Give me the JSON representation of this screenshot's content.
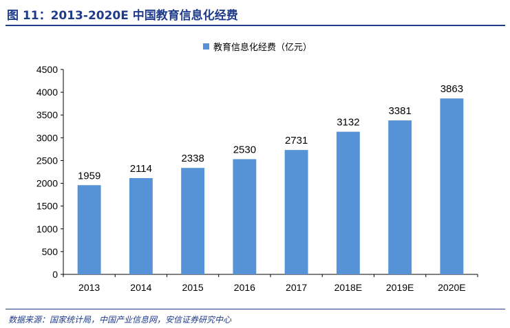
{
  "figure": {
    "title": "图 11：2013-2020E 中国教育信息化经费",
    "source": "数据来源：国家统计局，中国产业信息网，安信证券研究中心"
  },
  "colors": {
    "bar": "#5593d6",
    "title": "#1f3b8a"
  },
  "chart_data": {
    "type": "bar",
    "title": "",
    "xlabel": "",
    "ylabel": "",
    "categories": [
      "2013",
      "2014",
      "2015",
      "2016",
      "2017",
      "2018E",
      "2019E",
      "2020E"
    ],
    "series": [
      {
        "name": "教育信息化经费（亿元）",
        "values": [
          1959,
          2114,
          2338,
          2530,
          2731,
          3132,
          3381,
          3863
        ]
      }
    ],
    "ylim": [
      0,
      4500
    ],
    "yticks": [
      0,
      500,
      1000,
      1500,
      2000,
      2500,
      3000,
      3500,
      4000,
      4500
    ],
    "grid": false,
    "data_labels": true,
    "legend": "top-center"
  }
}
